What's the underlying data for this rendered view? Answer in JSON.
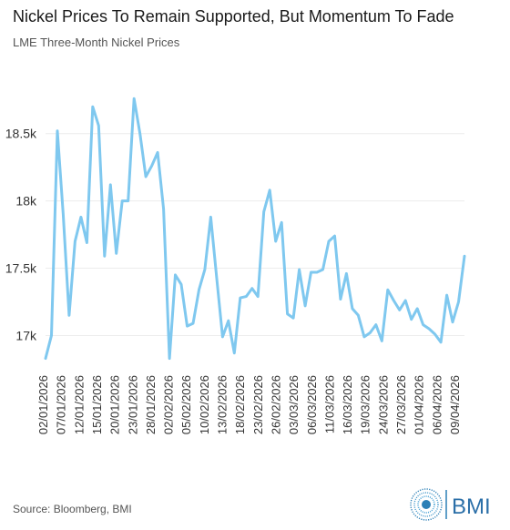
{
  "chart_data": {
    "type": "line",
    "title": "Nickel Prices To Remain Supported, But Momentum To Fade",
    "subtitle": "LME Three-Month Nickel Prices",
    "xlabel": "",
    "ylabel": "",
    "ylim": [
      16800,
      18850
    ],
    "yticks": [
      17000,
      17500,
      18000,
      18500
    ],
    "ytick_labels": [
      "17k",
      "17.5k",
      "18k",
      "18.5k"
    ],
    "grid": true,
    "legend": "none",
    "line_color": "#7fc8ef",
    "x_tick_labels": [
      "02/01/2026",
      "07/01/2026",
      "12/01/2026",
      "15/01/2026",
      "20/01/2026",
      "23/01/2026",
      "28/01/2026",
      "02/02/2026",
      "05/02/2026",
      "10/02/2026",
      "13/02/2026",
      "18/02/2026",
      "23/02/2026",
      "26/02/2026",
      "03/03/2026",
      "06/03/2026",
      "11/03/2026",
      "16/03/2026",
      "19/03/2026",
      "24/03/2026",
      "27/03/2026",
      "01/04/2026",
      "06/04/2026",
      "09/04/2026"
    ],
    "series": [
      {
        "values": [
          16830,
          17000,
          18520,
          17900,
          17150,
          17700,
          17880,
          17690,
          18700,
          18560,
          17590,
          18120,
          17610,
          18000,
          18000,
          18760,
          18500,
          18180,
          18260,
          18360,
          17940,
          16830,
          17450,
          17380,
          17070,
          17090,
          17340,
          17490,
          17880,
          17430,
          16990,
          17110,
          16870,
          17280,
          17290,
          17350,
          17290,
          17920,
          18080,
          17700,
          17840,
          17160,
          17130,
          17490,
          17220,
          17470,
          17470,
          17490,
          17700,
          17740,
          17270,
          17460,
          17200,
          17150,
          16990,
          17020,
          17080,
          16960,
          17340,
          17260,
          17190,
          17260,
          17120,
          17200,
          17080,
          17050,
          17010,
          16950,
          17300,
          17100,
          17250,
          17590
        ]
      }
    ],
    "source": "Source: Bloomberg, BMI",
    "logo_text": "BMI"
  }
}
